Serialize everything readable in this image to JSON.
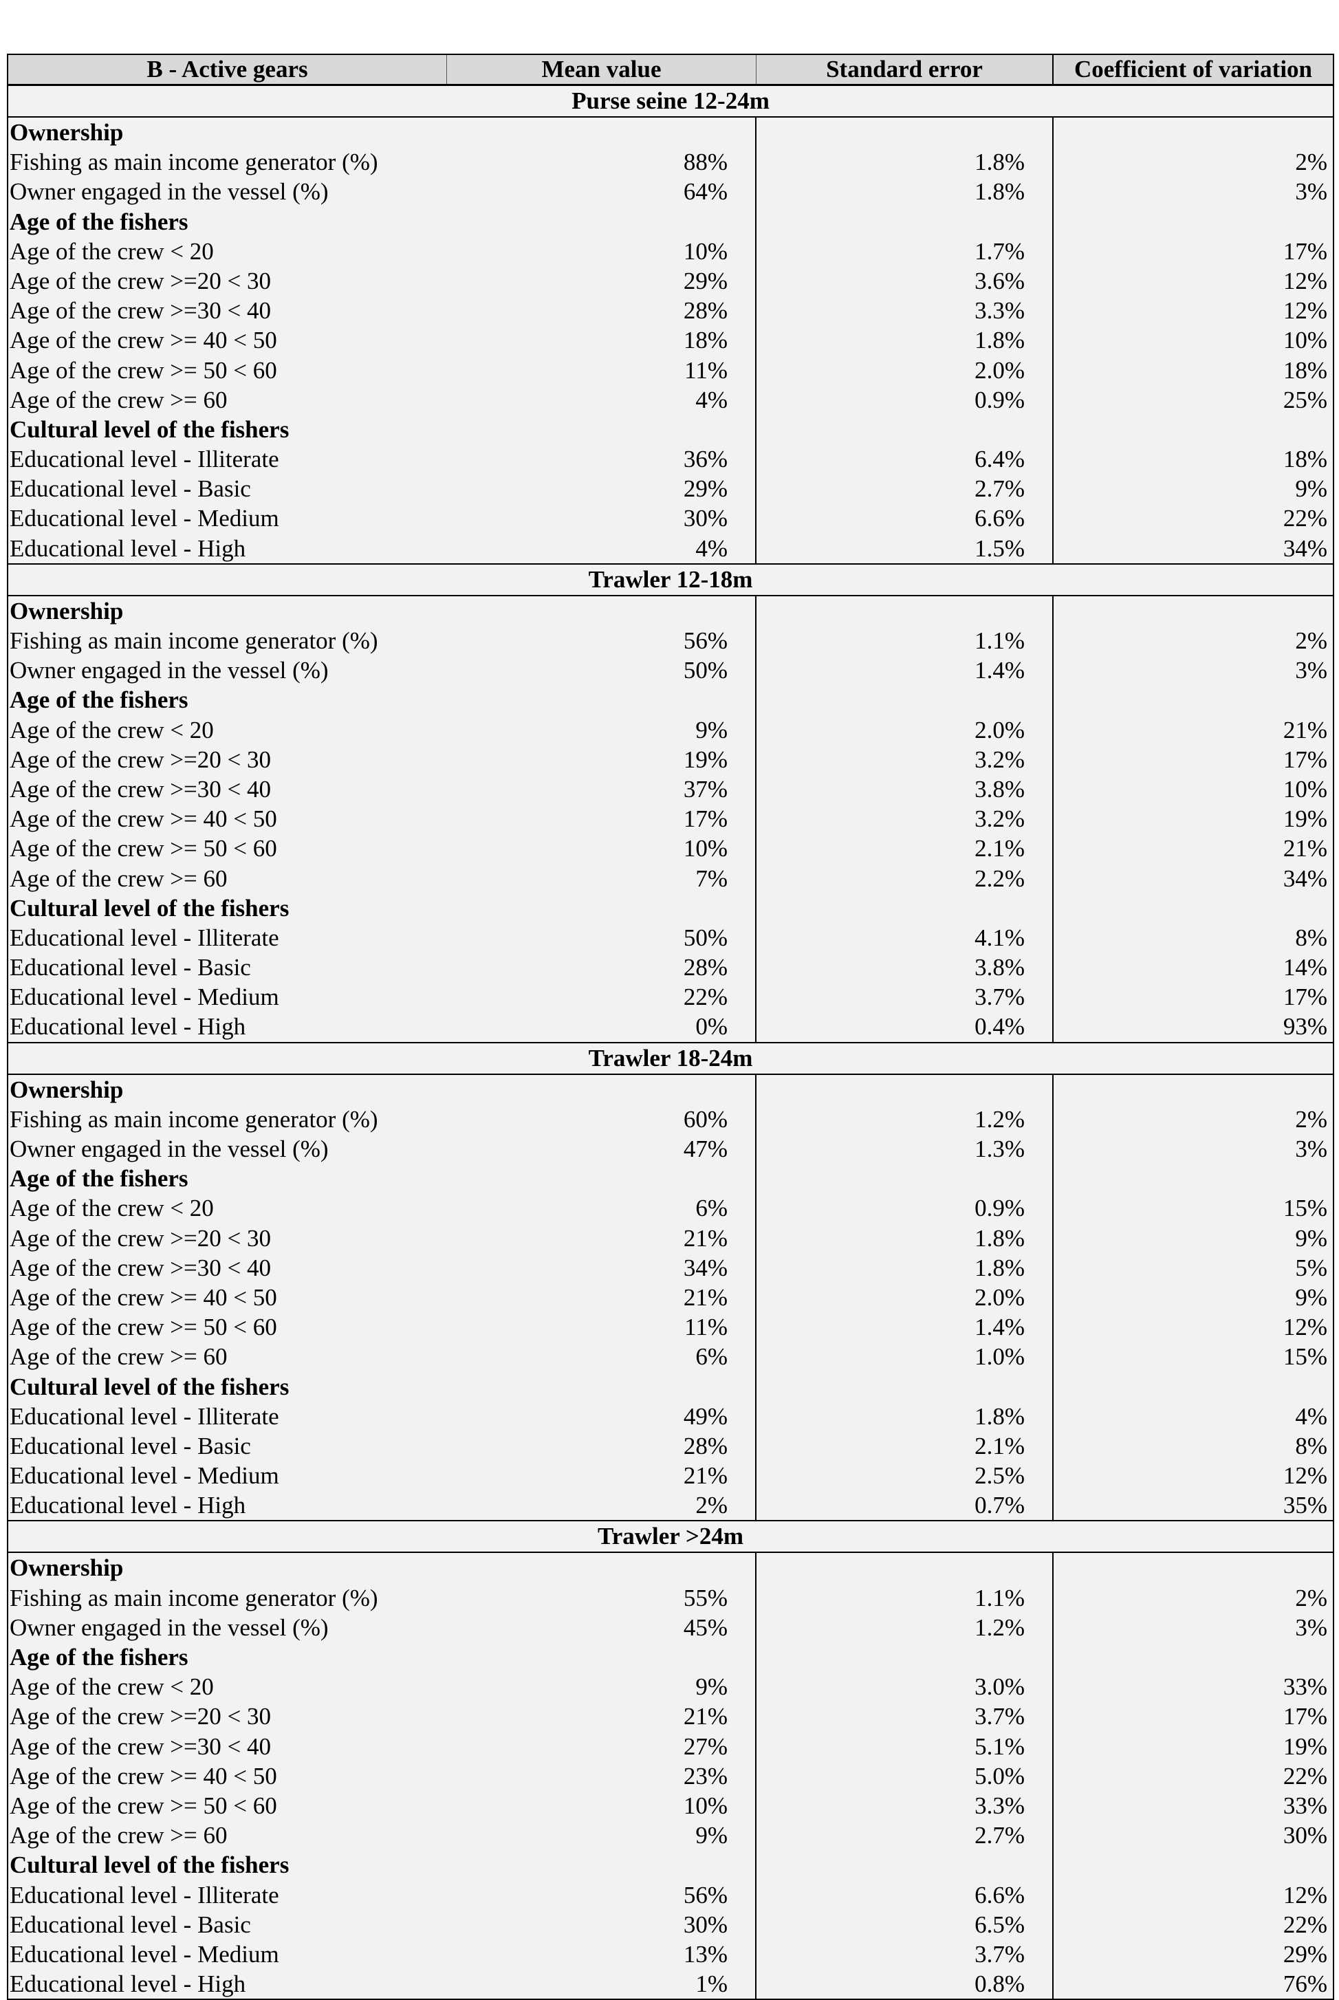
{
  "table": {
    "columns": [
      "B - Active gears",
      "Mean value",
      "Standard error",
      "Coefficient of variation"
    ],
    "sections": [
      {
        "title": "Purse seine 12-24m",
        "rows": [
          {
            "label": "Ownership",
            "heading": true
          },
          {
            "label": "Fishing as main income generator (%)",
            "mean": "88%",
            "se": "1.8%",
            "cv": "2%"
          },
          {
            "label": "Owner engaged in the vessel (%)",
            "mean": "64%",
            "se": "1.8%",
            "cv": "3%"
          },
          {
            "label": "Age of the fishers",
            "heading": true
          },
          {
            "label": "Age of the crew < 20",
            "mean": "10%",
            "se": "1.7%",
            "cv": "17%"
          },
          {
            "label": "Age of the crew >=20 < 30",
            "mean": "29%",
            "se": "3.6%",
            "cv": "12%"
          },
          {
            "label": "Age of the crew >=30 < 40",
            "mean": "28%",
            "se": "3.3%",
            "cv": "12%"
          },
          {
            "label": "Age of the crew >= 40 < 50",
            "mean": "18%",
            "se": "1.8%",
            "cv": "10%"
          },
          {
            "label": "Age of the crew >= 50 < 60",
            "mean": "11%",
            "se": "2.0%",
            "cv": "18%"
          },
          {
            "label": "Age of the crew >= 60",
            "mean": "4%",
            "se": "0.9%",
            "cv": "25%"
          },
          {
            "label": "Cultural level of the fishers",
            "heading": true
          },
          {
            "label": "Educational level - Illiterate",
            "mean": "36%",
            "se": "6.4%",
            "cv": "18%"
          },
          {
            "label": "Educational level - Basic",
            "mean": "29%",
            "se": "2.7%",
            "cv": "9%"
          },
          {
            "label": "Educational level - Medium",
            "mean": "30%",
            "se": "6.6%",
            "cv": "22%"
          },
          {
            "label": "Educational level - High",
            "mean": "4%",
            "se": "1.5%",
            "cv": "34%"
          }
        ]
      },
      {
        "title": "Trawler 12-18m",
        "rows": [
          {
            "label": "Ownership",
            "heading": true
          },
          {
            "label": "Fishing as main income generator (%)",
            "mean": "56%",
            "se": "1.1%",
            "cv": "2%"
          },
          {
            "label": "Owner engaged in the vessel (%)",
            "mean": "50%",
            "se": "1.4%",
            "cv": "3%"
          },
          {
            "label": "Age of the fishers",
            "heading": true
          },
          {
            "label": "Age of the crew < 20",
            "mean": "9%",
            "se": "2.0%",
            "cv": "21%"
          },
          {
            "label": "Age of the crew >=20 < 30",
            "mean": "19%",
            "se": "3.2%",
            "cv": "17%"
          },
          {
            "label": "Age of the crew >=30 < 40",
            "mean": "37%",
            "se": "3.8%",
            "cv": "10%"
          },
          {
            "label": "Age of the crew >= 40 < 50",
            "mean": "17%",
            "se": "3.2%",
            "cv": "19%"
          },
          {
            "label": "Age of the crew >= 50 < 60",
            "mean": "10%",
            "se": "2.1%",
            "cv": "21%"
          },
          {
            "label": "Age of the crew >= 60",
            "mean": "7%",
            "se": "2.2%",
            "cv": "34%"
          },
          {
            "label": "Cultural level of the fishers",
            "heading": true
          },
          {
            "label": "Educational level - Illiterate",
            "mean": "50%",
            "se": "4.1%",
            "cv": "8%"
          },
          {
            "label": "Educational level - Basic",
            "mean": "28%",
            "se": "3.8%",
            "cv": "14%"
          },
          {
            "label": "Educational level - Medium",
            "mean": "22%",
            "se": "3.7%",
            "cv": "17%"
          },
          {
            "label": "Educational level - High",
            "mean": "0%",
            "se": "0.4%",
            "cv": "93%"
          }
        ]
      },
      {
        "title": "Trawler 18-24m",
        "rows": [
          {
            "label": "Ownership",
            "heading": true
          },
          {
            "label": "Fishing as main income generator (%)",
            "mean": "60%",
            "se": "1.2%",
            "cv": "2%"
          },
          {
            "label": "Owner engaged in the vessel (%)",
            "mean": "47%",
            "se": "1.3%",
            "cv": "3%"
          },
          {
            "label": "Age of the fishers",
            "heading": true
          },
          {
            "label": "Age of the crew < 20",
            "mean": "6%",
            "se": "0.9%",
            "cv": "15%"
          },
          {
            "label": "Age of the crew >=20 < 30",
            "mean": "21%",
            "se": "1.8%",
            "cv": "9%"
          },
          {
            "label": "Age of the crew >=30 < 40",
            "mean": "34%",
            "se": "1.8%",
            "cv": "5%"
          },
          {
            "label": "Age of the crew >= 40 < 50",
            "mean": "21%",
            "se": "2.0%",
            "cv": "9%"
          },
          {
            "label": "Age of the crew >= 50 < 60",
            "mean": "11%",
            "se": "1.4%",
            "cv": "12%"
          },
          {
            "label": "Age of the crew >= 60",
            "mean": "6%",
            "se": "1.0%",
            "cv": "15%"
          },
          {
            "label": "Cultural level of the fishers",
            "heading": true
          },
          {
            "label": "Educational level - Illiterate",
            "mean": "49%",
            "se": "1.8%",
            "cv": "4%"
          },
          {
            "label": "Educational level - Basic",
            "mean": "28%",
            "se": "2.1%",
            "cv": "8%"
          },
          {
            "label": "Educational level - Medium",
            "mean": "21%",
            "se": "2.5%",
            "cv": "12%"
          },
          {
            "label": "Educational level - High",
            "mean": "2%",
            "se": "0.7%",
            "cv": "35%"
          }
        ]
      },
      {
        "title": "Trawler >24m",
        "rows": [
          {
            "label": "Ownership",
            "heading": true
          },
          {
            "label": "Fishing as main income generator (%)",
            "mean": "55%",
            "se": "1.1%",
            "cv": "2%"
          },
          {
            "label": "Owner engaged in the vessel (%)",
            "mean": "45%",
            "se": "1.2%",
            "cv": "3%"
          },
          {
            "label": "Age of the fishers",
            "heading": true
          },
          {
            "label": "Age of the crew < 20",
            "mean": "9%",
            "se": "3.0%",
            "cv": "33%"
          },
          {
            "label": "Age of the crew >=20 < 30",
            "mean": "21%",
            "se": "3.7%",
            "cv": "17%"
          },
          {
            "label": "Age of the crew >=30 < 40",
            "mean": "27%",
            "se": "5.1%",
            "cv": "19%"
          },
          {
            "label": "Age of the crew >= 40 < 50",
            "mean": "23%",
            "se": "5.0%",
            "cv": "22%"
          },
          {
            "label": "Age of the crew >= 50 < 60",
            "mean": "10%",
            "se": "3.3%",
            "cv": "33%"
          },
          {
            "label": "Age of the crew >= 60",
            "mean": "9%",
            "se": "2.7%",
            "cv": "30%"
          },
          {
            "label": "Cultural level of the fishers",
            "heading": true
          },
          {
            "label": "Educational level - Illiterate",
            "mean": "56%",
            "se": "6.6%",
            "cv": "12%"
          },
          {
            "label": "Educational level - Basic",
            "mean": "30%",
            "se": "6.5%",
            "cv": "22%"
          },
          {
            "label": "Educational level - Medium",
            "mean": "13%",
            "se": "3.7%",
            "cv": "29%"
          },
          {
            "label": "Educational level - High",
            "mean": "1%",
            "se": "0.8%",
            "cv": "76%"
          }
        ]
      }
    ]
  }
}
